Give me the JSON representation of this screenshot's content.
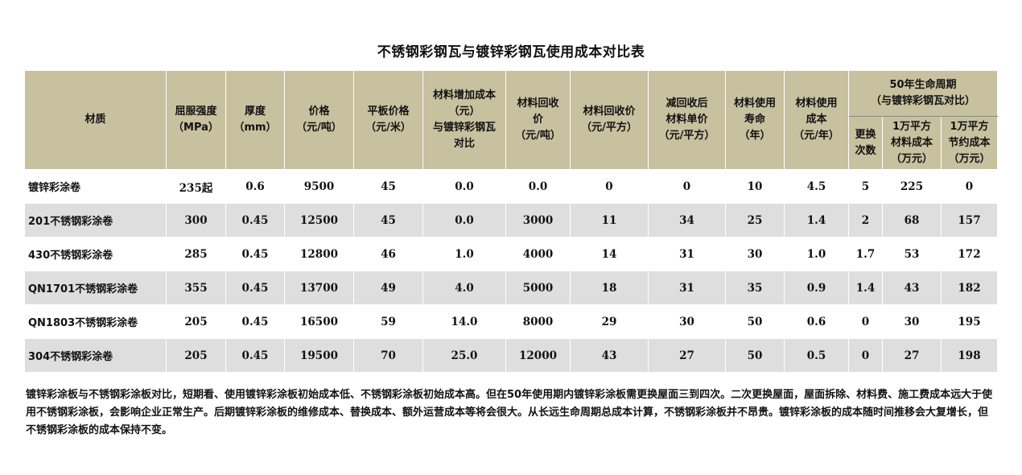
{
  "title": "不锈钢彩钢瓦与镀锌彩钢瓦使用成本对比表",
  "headers": {
    "material": "材质",
    "yield_l1": "屈服强度",
    "yield_l2": "（MPa）",
    "thick_l1": "厚度",
    "thick_l2": "（mm）",
    "price_l1": "价格",
    "price_l2": "（元/吨）",
    "flat_l1": "平板价格",
    "flat_l2": "（元/米）",
    "incr_l1": "材料增加成本",
    "incr_l2": "（元）",
    "incr_l3": "与镀锌彩钢瓦",
    "incr_l4": "对比",
    "recyc_l1": "材料回收",
    "recyc_l2": "价",
    "recyc_l3": "（元/吨）",
    "recsq_l1": "材料回收价",
    "recsq_l2": "（元/平方）",
    "unit_l1": "减回收后",
    "unit_l2": "材料单价",
    "unit_l3": "（元/平方）",
    "life_l1": "材料使用",
    "life_l2": "寿命",
    "life_l3": "（年）",
    "cost_l1": "材料使用",
    "cost_l2": "成本",
    "cost_l3": "（元/年）",
    "group_l1": "50年生命周期",
    "group_l2": "（与镀锌彩钢瓦对比）",
    "times_l1": "更换",
    "times_l2": "次数",
    "total_l1": "1万平方",
    "total_l2": "材料成本",
    "total_l3": "（万元）",
    "save_l1": "1万平方",
    "save_l2": "节约成本",
    "save_l3": "（万元）"
  },
  "rows": [
    {
      "name": "镀锌彩涂卷",
      "yield": "235起",
      "thick": "0.6",
      "price": "9500",
      "flat": "45",
      "incr": "0.0",
      "recyc": "0.0",
      "recsq": "0",
      "unit": "0",
      "life": "10",
      "cost": "4.5",
      "times": "5",
      "total": "225",
      "save": "0"
    },
    {
      "name": "201不锈钢彩涂卷",
      "yield": "300",
      "thick": "0.45",
      "price": "12500",
      "flat": "45",
      "incr": "0.0",
      "recyc": "3000",
      "recsq": "11",
      "unit": "34",
      "life": "25",
      "cost": "1.4",
      "times": "2",
      "total": "68",
      "save": "157"
    },
    {
      "name": "430不锈钢彩涂卷",
      "yield": "285",
      "thick": "0.45",
      "price": "12800",
      "flat": "46",
      "incr": "1.0",
      "recyc": "4000",
      "recsq": "14",
      "unit": "31",
      "life": "30",
      "cost": "1.0",
      "times": "1.7",
      "total": "53",
      "save": "172"
    },
    {
      "name": "QN1701不锈钢彩涂卷",
      "yield": "355",
      "thick": "0.45",
      "price": "13700",
      "flat": "49",
      "incr": "4.0",
      "recyc": "5000",
      "recsq": "18",
      "unit": "31",
      "life": "35",
      "cost": "0.9",
      "times": "1.4",
      "total": "43",
      "save": "182"
    },
    {
      "name": "QN1803不锈钢彩涂卷",
      "yield": "205",
      "thick": "0.45",
      "price": "16500",
      "flat": "59",
      "incr": "14.0",
      "recyc": "8000",
      "recsq": "29",
      "unit": "30",
      "life": "50",
      "cost": "0.6",
      "times": "0",
      "total": "30",
      "save": "195"
    },
    {
      "name": "304不锈钢彩涂卷",
      "yield": "205",
      "thick": "0.45",
      "price": "19500",
      "flat": "70",
      "incr": "25.0",
      "recyc": "12000",
      "recsq": "43",
      "unit": "27",
      "life": "50",
      "cost": "0.5",
      "times": "0",
      "total": "27",
      "save": "198"
    }
  ],
  "note": "镀锌彩涂板与不锈钢彩涂板对比，短期看、使用镀锌彩涂板初始成本低、不锈钢彩涂板初始成本高。但在50年使用期内镀锌彩涂板需更换屋面三到四次。二次更换屋面，屋面拆除、材料费、施工费成本远大于使用不锈钢彩涂板，会影响企业正常生产。后期镀锌彩涂板的维修成本、替换成本、额外运营成本等将会很大。从长远生命周期总成本计算，不锈钢彩涂板并不昂贵。镀锌彩涂板的成本随时间推移会大复增长，但不锈钢彩涂板的成本保持不变。"
}
